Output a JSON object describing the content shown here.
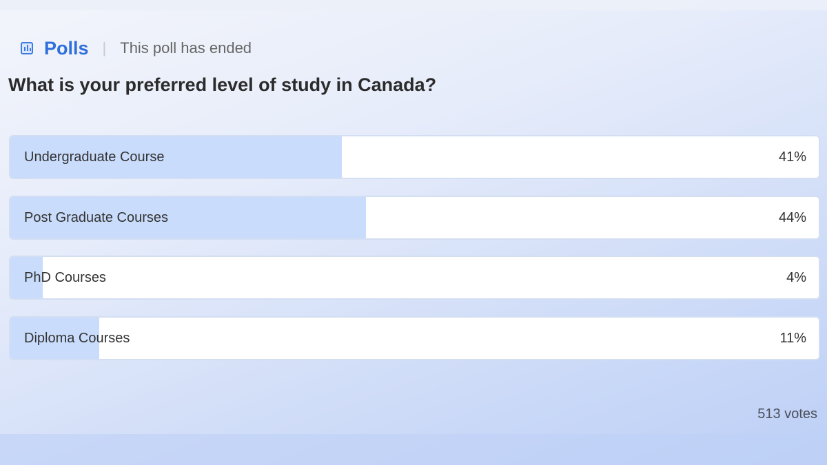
{
  "header": {
    "icon": "bar-chart-icon",
    "title": "Polls",
    "status": "This poll has ended"
  },
  "question": "What is your preferred level of study in Canada?",
  "options": [
    {
      "label": "Undergraduate Course",
      "percent_label": "41%",
      "percent": 41
    },
    {
      "label": "Post Graduate Courses",
      "percent_label": "44%",
      "percent": 44
    },
    {
      "label": "PhD Courses",
      "percent_label": "4%",
      "percent": 4
    },
    {
      "label": "Diploma Courses",
      "percent_label": "11%",
      "percent": 11
    }
  ],
  "votes": "513 votes",
  "colors": {
    "accent": "#2f6fdc",
    "fill": "#c9dcfb"
  }
}
